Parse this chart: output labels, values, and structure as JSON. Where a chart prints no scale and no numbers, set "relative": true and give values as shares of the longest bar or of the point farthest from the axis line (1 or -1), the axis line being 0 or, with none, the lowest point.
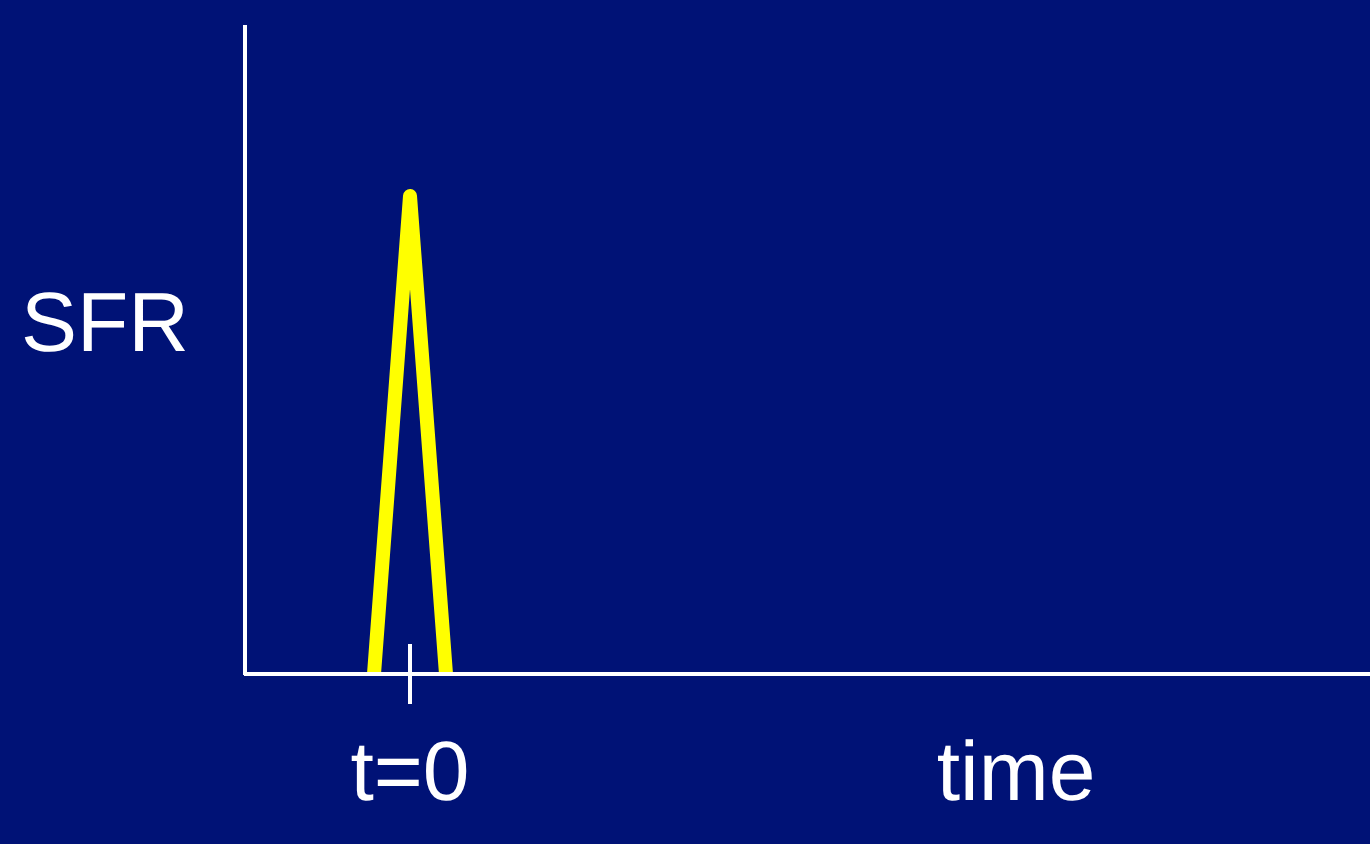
{
  "chart_data": {
    "type": "line",
    "ylabel": "SFR",
    "relative": true,
    "categories": [
      null,
      null,
      null
    ],
    "series": [
      {
        "color": "#ffff00",
        "values": [
          0,
          1,
          0
        ]
      }
    ],
    "annotations": [
      "t=0",
      "time"
    ]
  }
}
